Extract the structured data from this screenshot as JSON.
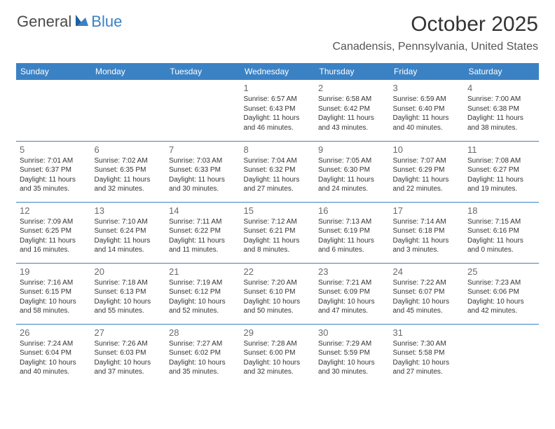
{
  "logo": {
    "part1": "General",
    "part2": "Blue"
  },
  "title": "October 2025",
  "location": "Canadensis, Pennsylvania, United States",
  "colors": {
    "header_bg": "#3b82c4",
    "header_text": "#ffffff",
    "border": "#3b82c4",
    "daynum": "#6a6a6a",
    "body_text": "#333333"
  },
  "weekdays": [
    "Sunday",
    "Monday",
    "Tuesday",
    "Wednesday",
    "Thursday",
    "Friday",
    "Saturday"
  ],
  "weeks": [
    [
      null,
      null,
      null,
      {
        "n": "1",
        "sr": "6:57 AM",
        "ss": "6:43 PM",
        "dl": "11 hours and 46 minutes."
      },
      {
        "n": "2",
        "sr": "6:58 AM",
        "ss": "6:42 PM",
        "dl": "11 hours and 43 minutes."
      },
      {
        "n": "3",
        "sr": "6:59 AM",
        "ss": "6:40 PM",
        "dl": "11 hours and 40 minutes."
      },
      {
        "n": "4",
        "sr": "7:00 AM",
        "ss": "6:38 PM",
        "dl": "11 hours and 38 minutes."
      }
    ],
    [
      {
        "n": "5",
        "sr": "7:01 AM",
        "ss": "6:37 PM",
        "dl": "11 hours and 35 minutes."
      },
      {
        "n": "6",
        "sr": "7:02 AM",
        "ss": "6:35 PM",
        "dl": "11 hours and 32 minutes."
      },
      {
        "n": "7",
        "sr": "7:03 AM",
        "ss": "6:33 PM",
        "dl": "11 hours and 30 minutes."
      },
      {
        "n": "8",
        "sr": "7:04 AM",
        "ss": "6:32 PM",
        "dl": "11 hours and 27 minutes."
      },
      {
        "n": "9",
        "sr": "7:05 AM",
        "ss": "6:30 PM",
        "dl": "11 hours and 24 minutes."
      },
      {
        "n": "10",
        "sr": "7:07 AM",
        "ss": "6:29 PM",
        "dl": "11 hours and 22 minutes."
      },
      {
        "n": "11",
        "sr": "7:08 AM",
        "ss": "6:27 PM",
        "dl": "11 hours and 19 minutes."
      }
    ],
    [
      {
        "n": "12",
        "sr": "7:09 AM",
        "ss": "6:25 PM",
        "dl": "11 hours and 16 minutes."
      },
      {
        "n": "13",
        "sr": "7:10 AM",
        "ss": "6:24 PM",
        "dl": "11 hours and 14 minutes."
      },
      {
        "n": "14",
        "sr": "7:11 AM",
        "ss": "6:22 PM",
        "dl": "11 hours and 11 minutes."
      },
      {
        "n": "15",
        "sr": "7:12 AM",
        "ss": "6:21 PM",
        "dl": "11 hours and 8 minutes."
      },
      {
        "n": "16",
        "sr": "7:13 AM",
        "ss": "6:19 PM",
        "dl": "11 hours and 6 minutes."
      },
      {
        "n": "17",
        "sr": "7:14 AM",
        "ss": "6:18 PM",
        "dl": "11 hours and 3 minutes."
      },
      {
        "n": "18",
        "sr": "7:15 AM",
        "ss": "6:16 PM",
        "dl": "11 hours and 0 minutes."
      }
    ],
    [
      {
        "n": "19",
        "sr": "7:16 AM",
        "ss": "6:15 PM",
        "dl": "10 hours and 58 minutes."
      },
      {
        "n": "20",
        "sr": "7:18 AM",
        "ss": "6:13 PM",
        "dl": "10 hours and 55 minutes."
      },
      {
        "n": "21",
        "sr": "7:19 AM",
        "ss": "6:12 PM",
        "dl": "10 hours and 52 minutes."
      },
      {
        "n": "22",
        "sr": "7:20 AM",
        "ss": "6:10 PM",
        "dl": "10 hours and 50 minutes."
      },
      {
        "n": "23",
        "sr": "7:21 AM",
        "ss": "6:09 PM",
        "dl": "10 hours and 47 minutes."
      },
      {
        "n": "24",
        "sr": "7:22 AM",
        "ss": "6:07 PM",
        "dl": "10 hours and 45 minutes."
      },
      {
        "n": "25",
        "sr": "7:23 AM",
        "ss": "6:06 PM",
        "dl": "10 hours and 42 minutes."
      }
    ],
    [
      {
        "n": "26",
        "sr": "7:24 AM",
        "ss": "6:04 PM",
        "dl": "10 hours and 40 minutes."
      },
      {
        "n": "27",
        "sr": "7:26 AM",
        "ss": "6:03 PM",
        "dl": "10 hours and 37 minutes."
      },
      {
        "n": "28",
        "sr": "7:27 AM",
        "ss": "6:02 PM",
        "dl": "10 hours and 35 minutes."
      },
      {
        "n": "29",
        "sr": "7:28 AM",
        "ss": "6:00 PM",
        "dl": "10 hours and 32 minutes."
      },
      {
        "n": "30",
        "sr": "7:29 AM",
        "ss": "5:59 PM",
        "dl": "10 hours and 30 minutes."
      },
      {
        "n": "31",
        "sr": "7:30 AM",
        "ss": "5:58 PM",
        "dl": "10 hours and 27 minutes."
      },
      null
    ]
  ],
  "labels": {
    "sunrise": "Sunrise:",
    "sunset": "Sunset:",
    "daylight": "Daylight:"
  }
}
